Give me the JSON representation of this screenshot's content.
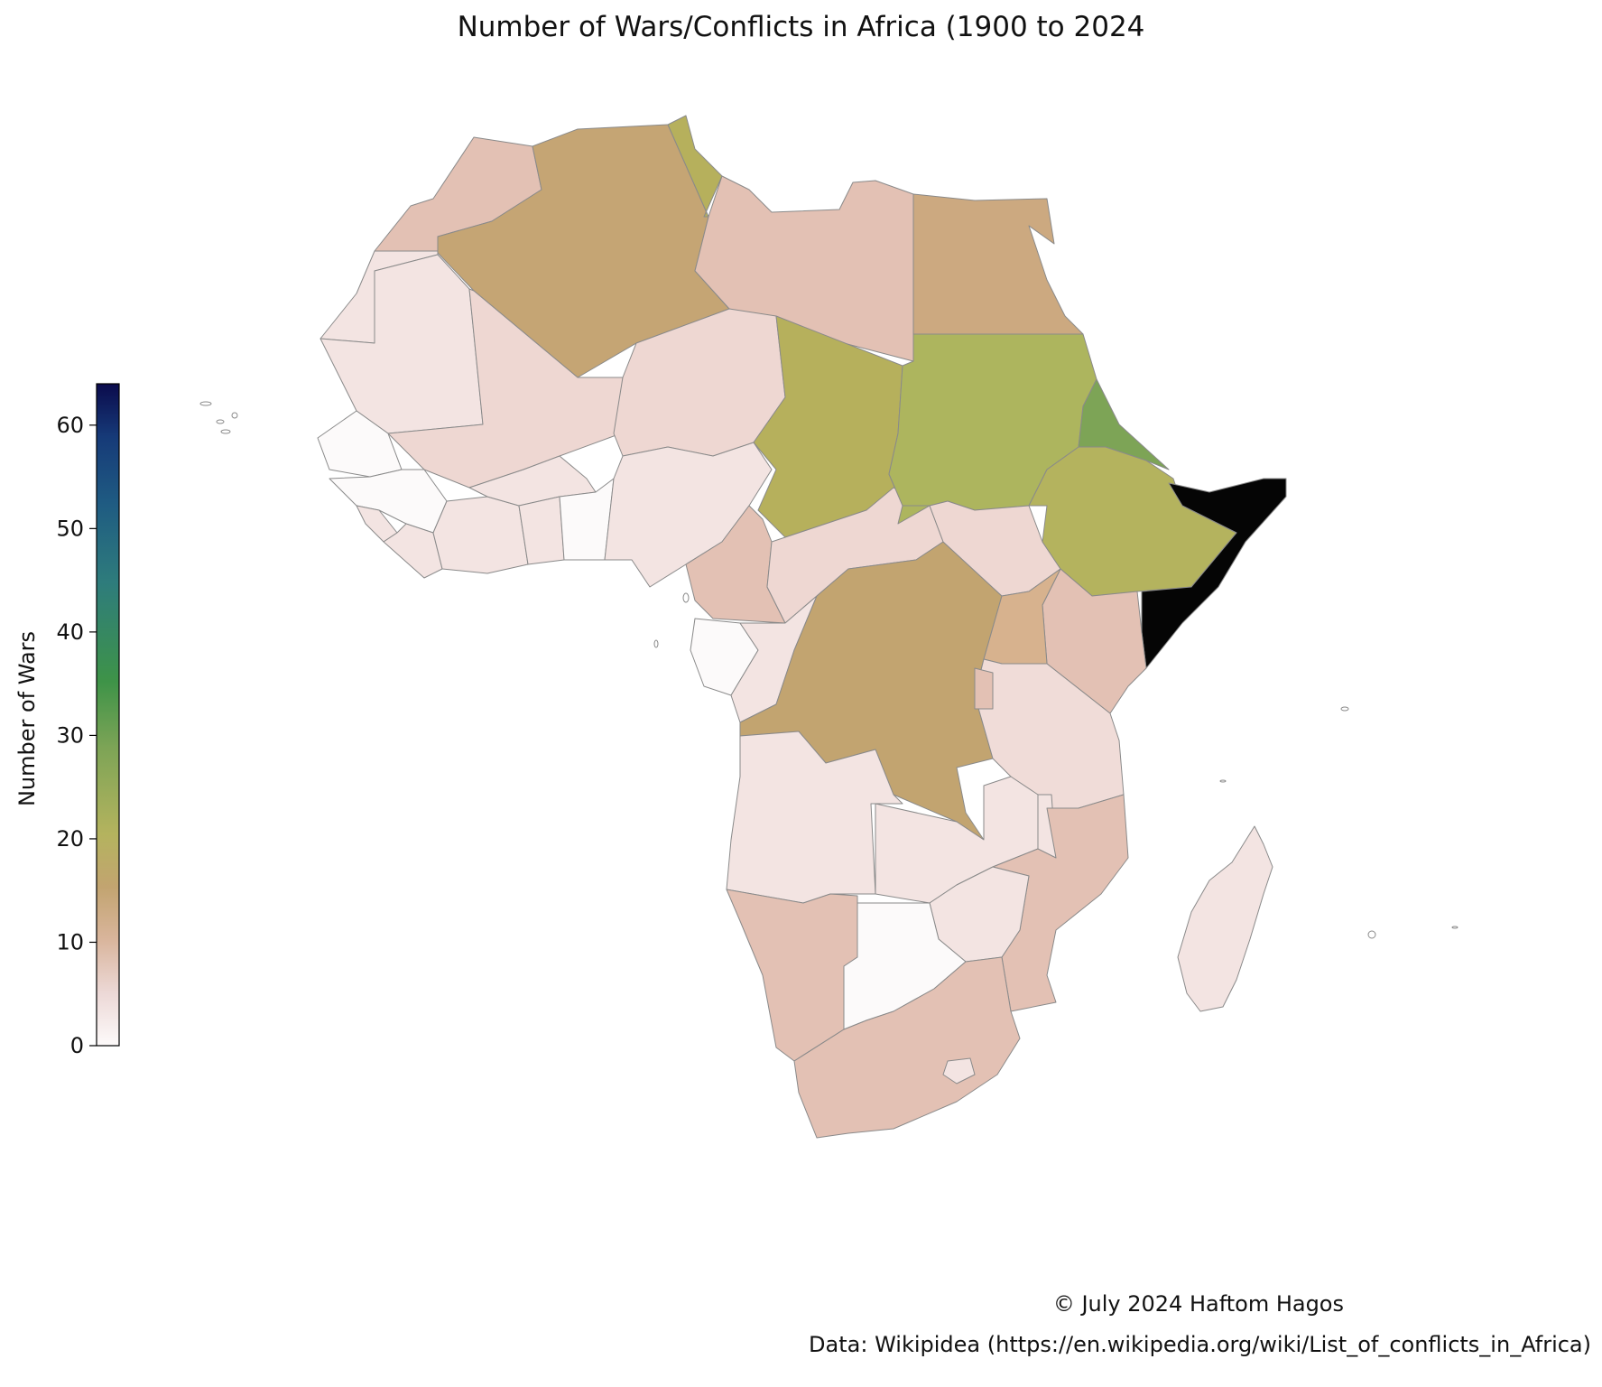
{
  "title": "Number of Wars/Conflicts in Africa (1900 to 2024",
  "colorbar": {
    "label": "Number of Wars",
    "range": [
      0,
      64
    ],
    "ticks": [
      0,
      10,
      20,
      30,
      40,
      50,
      60
    ],
    "scale": "gist_earth_r"
  },
  "credits": {
    "line1": "© July 2024 Haftom Hagos",
    "line2": "Data: Wikipidea (https://en.wikipedia.org/wiki/List_of_conflicts_in_Africa)"
  },
  "chart_data": {
    "type": "choropleth",
    "colors": {
      "very_low": "#fcfafa",
      "low": "#f3e4e2",
      "mid_low": "#e3c1b4",
      "mid": "#c5a574",
      "mid_high": "#b4b35e",
      "high": "#7da456",
      "max": "#050505",
      "border": "#8a8a8a"
    }
  }
}
